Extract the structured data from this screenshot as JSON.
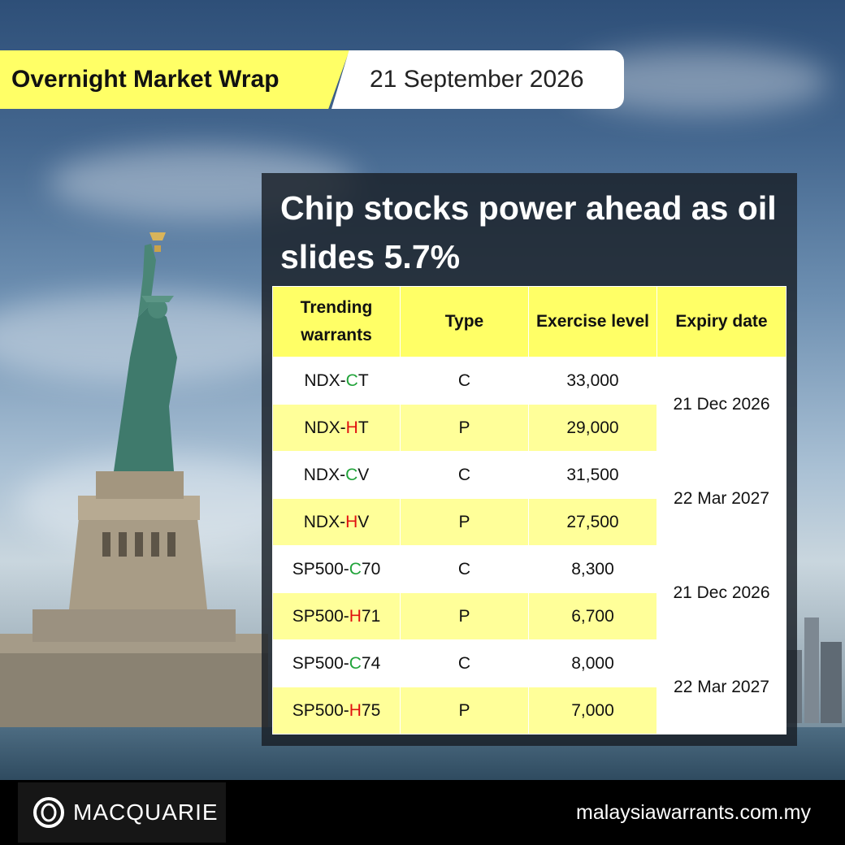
{
  "header": {
    "title": "Overnight Market Wrap",
    "date": "21 September 2026"
  },
  "headline": "Chip stocks power ahead as oil slides 5.7%",
  "table": {
    "headers": {
      "warrant": "Trending warrants",
      "type": "Type",
      "exercise": "Exercise level",
      "expiry": "Expiry date"
    },
    "rows": [
      {
        "prefix": "NDX-",
        "mark": "C",
        "suffix": "T",
        "type": "C",
        "exercise": "33,000"
      },
      {
        "prefix": "NDX-",
        "mark": "H",
        "suffix": "T",
        "type": "P",
        "exercise": "29,000"
      },
      {
        "prefix": "NDX-",
        "mark": "C",
        "suffix": "V",
        "type": "C",
        "exercise": "31,500"
      },
      {
        "prefix": "NDX-",
        "mark": "H",
        "suffix": "V",
        "type": "P",
        "exercise": "27,500"
      },
      {
        "prefix": "SP500-",
        "mark": "C",
        "suffix": "70",
        "type": "C",
        "exercise": "8,300"
      },
      {
        "prefix": "SP500-",
        "mark": "H",
        "suffix": "71",
        "type": "P",
        "exercise": "6,700"
      },
      {
        "prefix": "SP500-",
        "mark": "C",
        "suffix": "74",
        "type": "C",
        "exercise": "8,000"
      },
      {
        "prefix": "SP500-",
        "mark": "H",
        "suffix": "75",
        "type": "P",
        "exercise": "7,000"
      }
    ],
    "expiry_groups": [
      "21 Dec 2026",
      "22 Mar 2027",
      "21 Dec 2026",
      "22 Mar 2027"
    ]
  },
  "colors": {
    "call": "#21a33a",
    "put": "#e01010",
    "accent_yellow": "#ffff66"
  },
  "footer": {
    "brand": "MACQUARIE",
    "logo_icon": "macquarie-logo-icon",
    "website": "malaysiawarrants.com.my"
  }
}
